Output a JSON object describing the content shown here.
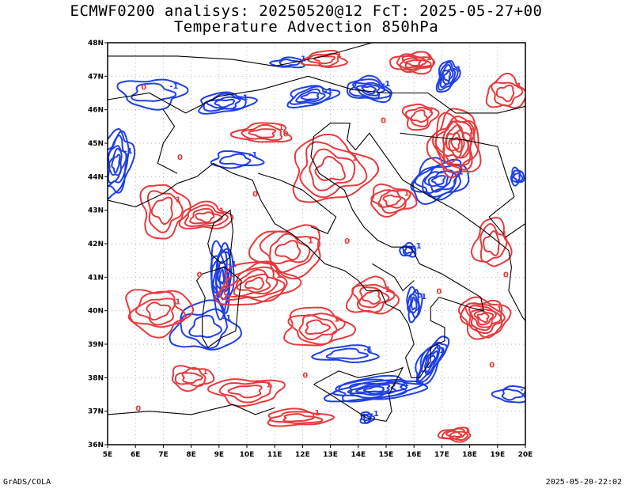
{
  "title": {
    "line1": "ECMWF0200 analisys: 20250520@12 FcT: 2025-05-27+00",
    "line2": "Temperature Advection 850hPa"
  },
  "footer": {
    "left": "GrADS/COLA",
    "right": "2025-05-20-22:02"
  },
  "map": {
    "lon_range": [
      5,
      20
    ],
    "lat_range": [
      36,
      48
    ],
    "lon_labels": [
      "5E",
      "6E",
      "7E",
      "8E",
      "9E",
      "10E",
      "11E",
      "12E",
      "13E",
      "14E",
      "15E",
      "16E",
      "17E",
      "18E",
      "19E",
      "20E"
    ],
    "lat_labels": [
      "48N",
      "47N",
      "46N",
      "45N",
      "44N",
      "43N",
      "42N",
      "41N",
      "40N",
      "39N",
      "38N",
      "37N",
      "36N"
    ],
    "grid": "dotted",
    "colors": {
      "positive": "#e8393c",
      "negative": "#1f3fe6",
      "coastline": "#000000",
      "grid": "#9a9a9a"
    },
    "contour_labels": {
      "positive": "1",
      "negative": "-1",
      "zero": "0"
    }
  }
}
